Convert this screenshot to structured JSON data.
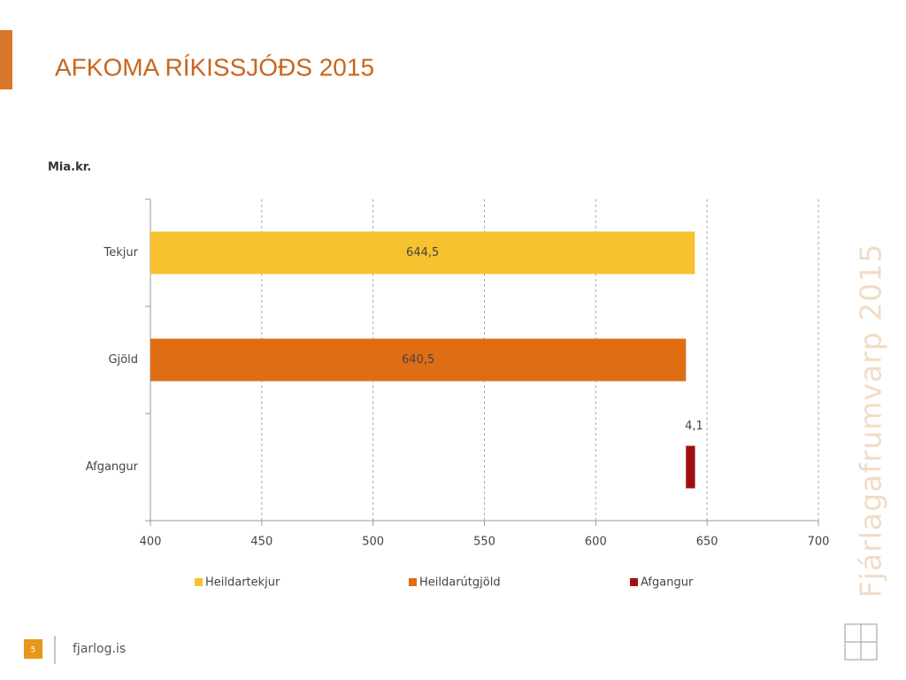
{
  "page": {
    "title": "AFKOMA RÍKISSJÓÐS 2015",
    "side_text": "Fjárlagafrumvarp 2015",
    "page_number": "5",
    "footer": "fjarlog.is"
  },
  "chart_data": {
    "type": "bar",
    "orientation": "horizontal",
    "unit_label": "Mia.kr.",
    "categories": [
      "Tekjur",
      "Gjöld",
      "Afgangur"
    ],
    "series": [
      {
        "name": "Heildartekjur",
        "color": "#f6c22f",
        "values": [
          644.5,
          null,
          null
        ],
        "value_labels": [
          "644,5",
          null,
          null
        ]
      },
      {
        "name": "Heildarútgjöld",
        "color": "#df6d14",
        "values": [
          null,
          640.5,
          null
        ],
        "value_labels": [
          null,
          "640,5",
          null
        ]
      },
      {
        "name": "Afgangur",
        "color": "#a00f10",
        "values": [
          null,
          null,
          4.1
        ],
        "value_labels": [
          null,
          null,
          "4,1"
        ]
      }
    ],
    "xlim": [
      400,
      700
    ],
    "xticks": [
      400,
      450,
      500,
      550,
      600,
      650,
      700
    ],
    "grid": true,
    "legend": "bottom"
  }
}
